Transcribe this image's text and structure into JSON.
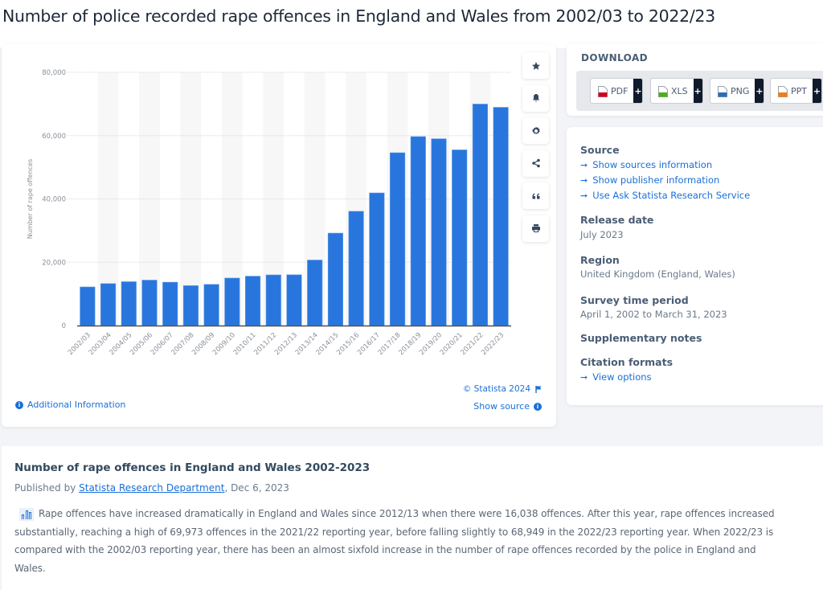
{
  "page": {
    "title": "Number of police recorded rape offences in England and Wales from 2002/03 to 2022/23"
  },
  "chart_tools": [
    {
      "name": "favorite",
      "icon": "star-icon"
    },
    {
      "name": "notification",
      "icon": "bell-icon"
    },
    {
      "name": "settings",
      "icon": "gear-icon"
    },
    {
      "name": "share",
      "icon": "share-icon"
    },
    {
      "name": "cite",
      "icon": "quote-icon"
    },
    {
      "name": "print",
      "icon": "printer-icon"
    }
  ],
  "chart_footer": {
    "additional_info": "Additional Information",
    "copyright": "© Statista 2024",
    "show_source": "Show source"
  },
  "download": {
    "title": "DOWNLOAD",
    "buttons": [
      {
        "label": "PDF",
        "color": "#d0021b"
      },
      {
        "label": "XLS",
        "color": "#4caf1e"
      },
      {
        "label": "PNG",
        "color": "#2a6fb8"
      },
      {
        "label": "PPT",
        "color": "#f07c1b"
      }
    ],
    "plus": "+"
  },
  "meta": {
    "source_heading": "Source",
    "source_links": [
      "Show sources information",
      "Show publisher information",
      "Use Ask Statista Research Service"
    ],
    "release_heading": "Release date",
    "release_value": "July 2023",
    "region_heading": "Region",
    "region_value": "United Kingdom (England, Wales)",
    "survey_heading": "Survey time period",
    "survey_value": "April 1, 2002 to March 31, 2023",
    "supp_heading": "Supplementary notes",
    "citation_heading": "Citation formats",
    "citation_link": "View options"
  },
  "description": {
    "title": "Number of rape offences in England and Wales 2002-2023",
    "published_prefix": "Published by ",
    "publisher": "Statista Research Department",
    "published_date": ", Dec 6, 2023",
    "body": "Rape offences have increased dramatically in England and Wales since 2012/13 when there were 16,038 offences. After this year, rape offences increased substantially, reaching a high of 69,973 offences in the 2021/22 reporting year, before falling slightly to 68,949 in the 2022/23 reporting year. When 2022/23 is compared with the 2002/03 reporting year, there has been an almost sixfold increase in the number of rape offences recorded by the police in England and Wales."
  },
  "colors": {
    "bar": "#2876dd",
    "link": "#1a6fd8"
  },
  "chart_data": {
    "type": "bar",
    "title": "Number of police recorded rape offences in England and Wales from 2002/03 to 2022/23",
    "xlabel": "",
    "ylabel": "Number of rape offences",
    "ylim": [
      0,
      80000
    ],
    "yticks": [
      0,
      20000,
      40000,
      60000,
      80000
    ],
    "ytick_labels": [
      "0",
      "20,000",
      "40,000",
      "60,000",
      "80,000"
    ],
    "grid": true,
    "categories": [
      "2002/03",
      "2003/04",
      "2004/05",
      "2005/06",
      "2006/07",
      "2007/08",
      "2008/09",
      "2009/10",
      "2010/11",
      "2011/12",
      "2012/13",
      "2013/14",
      "2014/15",
      "2015/16",
      "2016/17",
      "2017/18",
      "2018/19",
      "2019/20",
      "2020/21",
      "2021/22",
      "2022/23"
    ],
    "values": [
      12200,
      13250,
      13850,
      14350,
      13700,
      12600,
      13000,
      15000,
      15600,
      16000,
      16038,
      20700,
      29200,
      36100,
      41900,
      54600,
      59700,
      59000,
      55500,
      69973,
      68949
    ]
  }
}
